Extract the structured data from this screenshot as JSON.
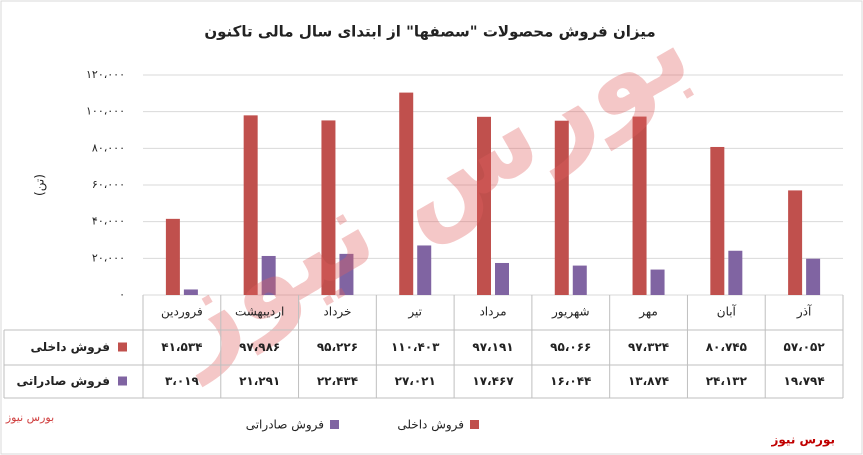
{
  "chart_data": {
    "type": "bar",
    "title": "میزان فروش محصولات \"سصفها\" از ابتدای سال مالی تاکنون",
    "y_label": "(تن)",
    "watermark": "بورس نیوز",
    "brand": "بورس نیوز",
    "categories": [
      "فروردین",
      "اردیبهشت",
      "خرداد",
      "تیر",
      "مرداد",
      "شهریور",
      "مهر",
      "آبان",
      "آذر"
    ],
    "series": [
      {
        "name": "فروش داخلی",
        "color": "#c0504d",
        "values": [
          41534,
          97986,
          95226,
          110403,
          97191,
          95066,
          97324,
          80745,
          57052
        ],
        "value_labels": [
          "۴۱،۵۳۴",
          "۹۷،۹۸۶",
          "۹۵،۲۲۶",
          "۱۱۰،۴۰۳",
          "۹۷،۱۹۱",
          "۹۵،۰۶۶",
          "۹۷،۳۲۴",
          "۸۰،۷۴۵",
          "۵۷،۰۵۲"
        ]
      },
      {
        "name": "فروش صادراتی",
        "color": "#8064a2",
        "values": [
          3019,
          21291,
          22434,
          27021,
          17467,
          16044,
          13874,
          24132,
          19794
        ],
        "value_labels": [
          "۳،۰۱۹",
          "۲۱،۲۹۱",
          "۲۲،۴۳۴",
          "۲۷،۰۲۱",
          "۱۷،۴۶۷",
          "۱۶،۰۴۴",
          "۱۳،۸۷۴",
          "۲۴،۱۳۲",
          "۱۹،۷۹۴"
        ]
      }
    ],
    "ylim": [
      0,
      120000
    ],
    "yticks": [
      {
        "value": 0,
        "label": "۰"
      },
      {
        "value": 20000,
        "label": "۲۰،۰۰۰"
      },
      {
        "value": 40000,
        "label": "۴۰،۰۰۰"
      },
      {
        "value": 60000,
        "label": "۶۰،۰۰۰"
      },
      {
        "value": 80000,
        "label": "۸۰،۰۰۰"
      },
      {
        "value": 100000,
        "label": "۱۰۰،۰۰۰"
      },
      {
        "value": 120000,
        "label": "۱۲۰،۰۰۰"
      }
    ],
    "grid": true
  }
}
